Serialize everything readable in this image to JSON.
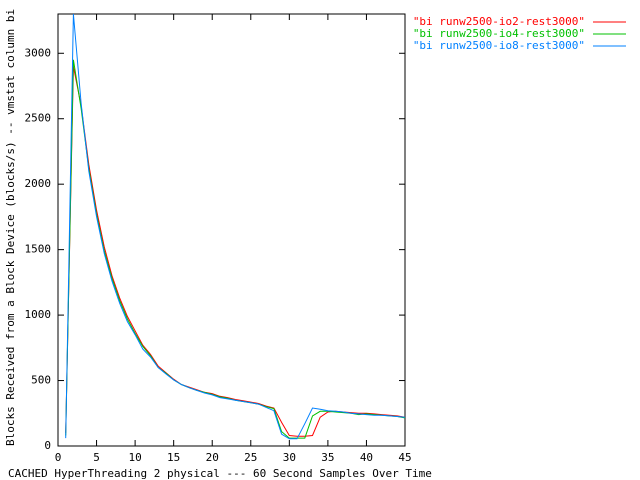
{
  "chart_data": {
    "type": "line",
    "xlabel": "CACHED HyperThreading 2 physical --- 60 Second Samples Over Time",
    "ylabel": "Blocks Received from a Block Device (blocks/s) -- vmstat column bi",
    "x": [
      1,
      2,
      3,
      4,
      5,
      6,
      7,
      8,
      9,
      10,
      11,
      12,
      13,
      14,
      15,
      16,
      17,
      18,
      19,
      20,
      21,
      22,
      23,
      24,
      25,
      26,
      27,
      28,
      29,
      30,
      31,
      32,
      33,
      34,
      35,
      36,
      37,
      38,
      39,
      40,
      41,
      42,
      43,
      44,
      45
    ],
    "series": [
      {
        "name": "\"bi runw2500-io2-rest3000\"",
        "color": "#ff0000",
        "values": [
          100,
          2900,
          2600,
          2150,
          1800,
          1520,
          1300,
          1130,
          990,
          880,
          770,
          700,
          610,
          560,
          510,
          470,
          450,
          430,
          410,
          400,
          380,
          370,
          355,
          345,
          335,
          325,
          305,
          290,
          180,
          80,
          75,
          75,
          80,
          220,
          260,
          265,
          260,
          255,
          250,
          250,
          245,
          240,
          235,
          230,
          220
        ]
      },
      {
        "name": "\"bi runw2500-io4-rest3000\"",
        "color": "#00c000",
        "values": [
          80,
          2950,
          2580,
          2120,
          1770,
          1490,
          1280,
          1110,
          970,
          860,
          760,
          690,
          600,
          555,
          505,
          470,
          445,
          425,
          410,
          395,
          375,
          365,
          350,
          340,
          330,
          320,
          300,
          285,
          110,
          60,
          60,
          60,
          230,
          265,
          265,
          260,
          255,
          250,
          240,
          245,
          240,
          235,
          230,
          225,
          215
        ]
      },
      {
        "name": "\"bi runw2500-io8-rest3000\"",
        "color": "#0080ff",
        "values": [
          60,
          3300,
          2620,
          2100,
          1750,
          1470,
          1260,
          1090,
          950,
          850,
          740,
          680,
          600,
          550,
          505,
          470,
          445,
          425,
          405,
          390,
          370,
          360,
          350,
          340,
          330,
          320,
          295,
          270,
          90,
          55,
          55,
          170,
          290,
          280,
          270,
          265,
          260,
          250,
          245,
          240,
          235,
          235,
          230,
          225,
          220
        ]
      }
    ],
    "xlim": [
      0,
      45
    ],
    "xticks": [
      0,
      5,
      10,
      15,
      20,
      25,
      30,
      35,
      40,
      45
    ],
    "ylim": [
      0,
      3300
    ],
    "yticks": [
      0,
      500,
      1000,
      1500,
      2000,
      2500,
      3000
    ],
    "legend": "top-right"
  }
}
